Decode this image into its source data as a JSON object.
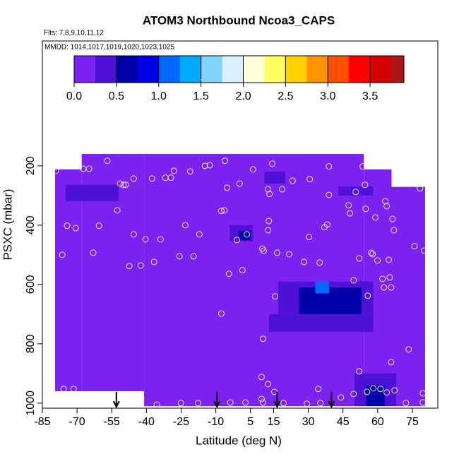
{
  "chart_data": {
    "type": "curtain",
    "title": "ATOM3 Northbound Ncoa3_CAPS",
    "subtitle": "Flts: 7,8,9,10,11,12",
    "annotation": "MMDD: 1014,1017,1019,1020,1023,1025",
    "x_label": "Latitude (deg N)",
    "y_label": "PSXC (mbar)",
    "xlim": [
      -85,
      86
    ],
    "ylim": [
      1017,
      -221
    ],
    "xticks": [
      -85,
      -70,
      -55,
      -40,
      -25,
      -10,
      5,
      15,
      30,
      45,
      60,
      75
    ],
    "yticks": [
      200,
      400,
      600,
      800,
      1000
    ],
    "colorbar": {
      "lim": [
        0,
        3.9
      ],
      "step": 0.25,
      "ticks": [
        {
          "value": 0,
          "label": "0.0"
        },
        0.5,
        {
          "value": 1,
          "label": "1.0"
        },
        1.5,
        {
          "value": 2,
          "label": "2.0"
        },
        2.5,
        {
          "value": 3,
          "label": "3.0"
        },
        3.5
      ],
      "colors": [
        "#7b22ee",
        "#4d12d6",
        "#0000a8",
        "#0000e6",
        "#0068ff",
        "#00aaff",
        "#7fd4ff",
        "#d9f0ff",
        "#ffffdc",
        "#ffff60",
        "#ffd000",
        "#ff9400",
        "#ff5000",
        "#ff0000",
        "#d40000",
        "#a81818"
      ]
    },
    "cells": [
      {
        "lat": [
          -79.5,
          -68
        ],
        "p": [
          212,
          960
        ],
        "value": 0.1
      },
      {
        "lat": [
          -68,
          -41
        ],
        "p": [
          160,
          960
        ],
        "value": 0.1
      },
      {
        "lat": [
          -41,
          54
        ],
        "p": [
          160,
          1010
        ],
        "value": 0.1
      },
      {
        "lat": [
          54,
          66
        ],
        "p": [
          212,
          1010
        ],
        "value": 0.1
      },
      {
        "lat": [
          66,
          80.5
        ],
        "p": [
          271,
          1010
        ],
        "value": 0.1
      },
      {
        "lat": [
          -75,
          -52
        ],
        "p": [
          264,
          319
        ],
        "value": 0.3
      },
      {
        "lat": [
          -63,
          -55
        ],
        "p": [
          270,
          310
        ],
        "value": 0.45
      },
      {
        "lat": [
          11,
          20
        ],
        "p": [
          220,
          260
        ],
        "value": 0.3
      },
      {
        "lat": [
          43,
          58
        ],
        "p": [
          270,
          300
        ],
        "value": 0.25
      },
      {
        "lat": [
          -4,
          6
        ],
        "p": [
          400,
          455
        ],
        "value": 0.35
      },
      {
        "lat": [
          0,
          5
        ],
        "p": [
          420,
          450
        ],
        "value": 0.55
      },
      {
        "lat": [
          17,
          58
        ],
        "p": [
          590,
          700
        ],
        "value": 0.4
      },
      {
        "lat": [
          26,
          53
        ],
        "p": [
          610,
          700
        ],
        "value": 0.6
      },
      {
        "lat": [
          33,
          39
        ],
        "p": [
          590,
          630
        ],
        "value": 1.1
      },
      {
        "lat": [
          13,
          58
        ],
        "p": [
          700,
          760
        ],
        "value": 0.27
      },
      {
        "lat": [
          50,
          68
        ],
        "p": [
          900,
          1010
        ],
        "value": 0.35
      },
      {
        "lat": [
          55,
          63
        ],
        "p": [
          940,
          1010
        ],
        "value": 0.7
      }
    ],
    "arrows": [
      -53,
      -9.5,
      16.5,
      40
    ],
    "points": {
      "x": [
        -56.9,
        -79.2,
        -67.3,
        -64.8,
        -45.5,
        -37.6,
        -31.8,
        -29.4,
        -21.1,
        -14.7,
        -12.6,
        -6.1,
        -28.1,
        6.1,
        14.4,
        23.2,
        30.6,
        38.9,
        53.5,
        54.5,
        50.5,
        38.9,
        18.7,
        12.6,
        13.2,
        0.3,
        -5.2,
        -51.4,
        -49.9,
        -48.9,
        -52.6,
        -7.6,
        -6.3,
        -74.3,
        -70.6,
        -60.5,
        -45.5,
        -40.4,
        -33.9,
        -23.2,
        -17.1,
        3.4,
        -0.9,
        12.9,
        12.6,
        30.3,
        37.0,
        38.2,
        47.4,
        48.0,
        54.8,
        59.0,
        63.3,
        63.9,
        66.4,
        67.0,
        78.3,
        80.1,
        75.9,
        -76.4,
        -63.0,
        -47.4,
        -42.5,
        -36.7,
        -25.7,
        -19.6,
        10.1,
        10.7,
        16.5,
        21.7,
        28.1,
        34.9,
        52.0,
        57.2,
        57.8,
        59.9,
        64.8,
        -4.3,
        1.5,
        49.6,
        62.1,
        65.2,
        62.7,
        65.8,
        55.7,
        15.6,
        -7.6,
        10.4,
        9.8,
        12.6,
        15.3,
        34.3,
        52.0,
        65.8,
        73.4,
        58.1,
        63.9,
        61.2,
        55.4,
        49.6,
        44.1,
        79.5,
        79.5,
        -75.8,
        -71.5,
        -35.5,
        -25.1,
        -17.7,
        -3.7,
        2.8,
        9.8,
        10.4,
        19.3,
        29.4,
        35.2,
        72.2,
        67.3
      ],
      "y": [
        183,
        217,
        210,
        210,
        243,
        243,
        240,
        240,
        219,
        200,
        198,
        183,
        217,
        212,
        193,
        250,
        245,
        202,
        202,
        264,
        288,
        298,
        279,
        279,
        295,
        260,
        274,
        260,
        264,
        264,
        350,
        352,
        350,
        402,
        410,
        402,
        431,
        448,
        448,
        400,
        431,
        431,
        450,
        386,
        417,
        440,
        407,
        398,
        333,
        360,
        345,
        374,
        319,
        336,
        379,
        417,
        276,
        486,
        471,
        500,
        493,
        538,
        536,
        524,
        505,
        505,
        479,
        486,
        493,
        498,
        524,
        526,
        512,
        493,
        498,
        519,
        517,
        564,
        552,
        586,
        581,
        576,
        610,
        610,
        638,
        640,
        698,
        783,
        912,
        936,
        962,
        952,
        893,
        862,
        819,
        950,
        964,
        952,
        962,
        969,
        981,
        967,
        998,
        952,
        952,
        1005,
        1000,
        1000,
        998,
        998,
        986,
        998,
        1000,
        1002,
        1000,
        1000,
        957
      ]
    }
  }
}
